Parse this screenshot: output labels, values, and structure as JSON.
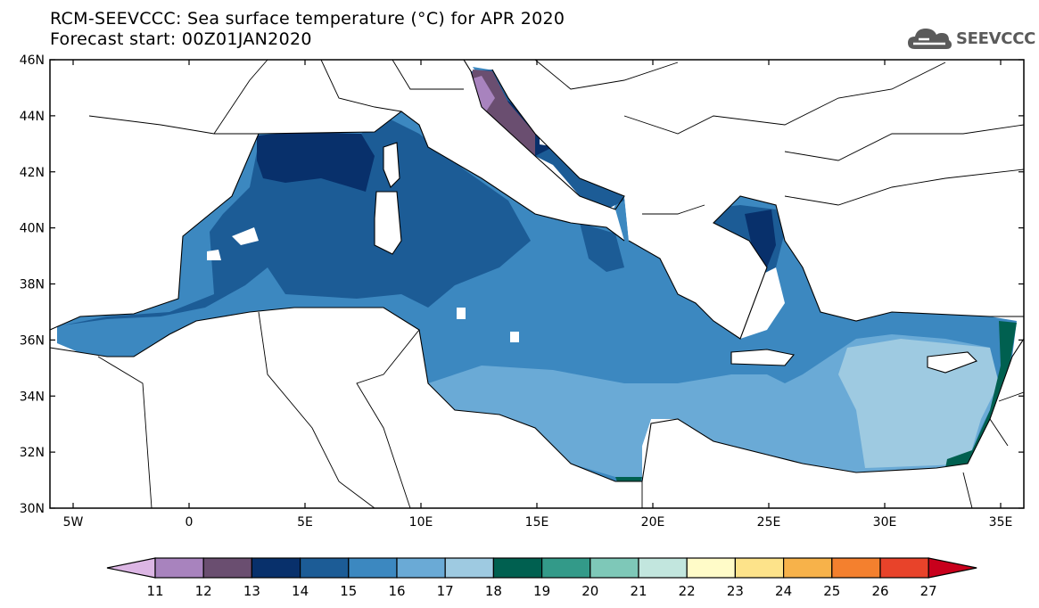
{
  "header": {
    "title": "RCM-SEEVCCC: Sea surface temperature (°C) for APR 2020",
    "subtitle": "Forecast start: 00Z01JAN2020",
    "logo_text": "SEEVCCC",
    "logo_icon": "cloud-icon"
  },
  "map": {
    "lon_range": [
      -6,
      36
    ],
    "lat_range": [
      30,
      46
    ],
    "lat_ticks": [
      "30N",
      "32N",
      "34N",
      "36N",
      "38N",
      "40N",
      "42N",
      "44N",
      "46N"
    ],
    "lon_ticks": [
      "5W",
      "0",
      "5E",
      "10E",
      "15E",
      "20E",
      "25E",
      "30E",
      "35E"
    ],
    "land_color": "#ffffff"
  },
  "colorbar": {
    "labels": [
      "11",
      "12",
      "13",
      "14",
      "15",
      "16",
      "17",
      "18",
      "19",
      "20",
      "21",
      "22",
      "23",
      "24",
      "25",
      "26",
      "27"
    ],
    "colors": [
      "#dcb6e4",
      "#a883be",
      "#6a4e70",
      "#08306b",
      "#1c5c96",
      "#3c88c0",
      "#6aaad6",
      "#9ecae1",
      "#006050",
      "#339a89",
      "#7ec8b8",
      "#c2e6de",
      "#fffbc8",
      "#fde38a",
      "#f7b24a",
      "#f4802e",
      "#e8432a",
      "#c8001c"
    ]
  }
}
